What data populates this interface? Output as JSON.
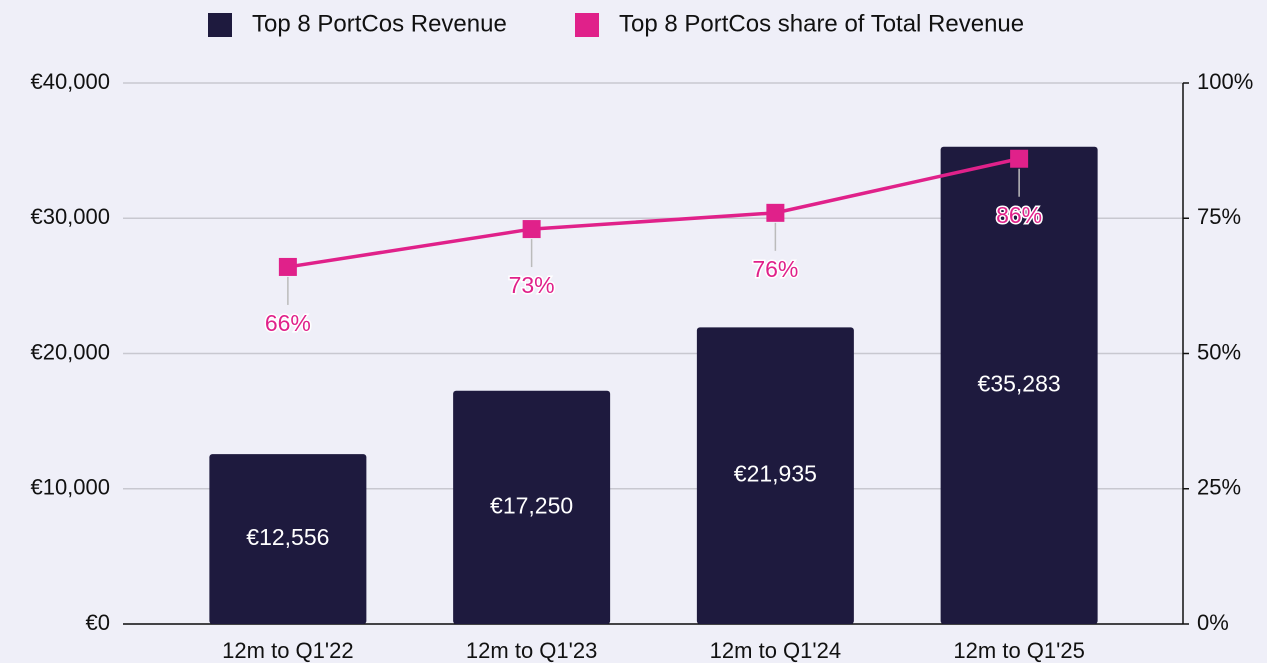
{
  "chart_data": {
    "type": "bar",
    "categories": [
      "12m to Q1'22",
      "12m to Q1'23",
      "12m to Q1'24",
      "12m to Q1'25"
    ],
    "series": [
      {
        "name": "Top 8 PortCos Revenue",
        "type": "bar",
        "color": "#1e1a3e",
        "values": [
          12556,
          17250,
          21935,
          35283
        ],
        "value_labels": [
          "€12,556",
          "€17,250",
          "€21,935",
          "€35,283"
        ]
      },
      {
        "name": "Top 8 PortCos share of Total Revenue",
        "type": "line",
        "axis": "y2",
        "color": "#e0218a",
        "values": [
          66,
          73,
          76,
          86
        ],
        "value_labels": [
          "66%",
          "73%",
          "76%",
          "86%"
        ]
      }
    ],
    "ylim": [
      0,
      40000
    ],
    "yticks": [
      {
        "value": 0,
        "label": "€0"
      },
      {
        "value": 10000,
        "label": "€10,000"
      },
      {
        "value": 20000,
        "label": "€20,000"
      },
      {
        "value": 30000,
        "label": "€30,000"
      },
      {
        "value": 40000,
        "label": "€40,000"
      }
    ],
    "y2lim": [
      0,
      100
    ],
    "y2ticks": [
      {
        "value": 0,
        "label": "0%"
      },
      {
        "value": 25,
        "label": "25%"
      },
      {
        "value": 50,
        "label": "50%"
      },
      {
        "value": 75,
        "label": "75%"
      },
      {
        "value": 100,
        "label": "100%"
      }
    ],
    "grid": true,
    "legend": "top"
  }
}
